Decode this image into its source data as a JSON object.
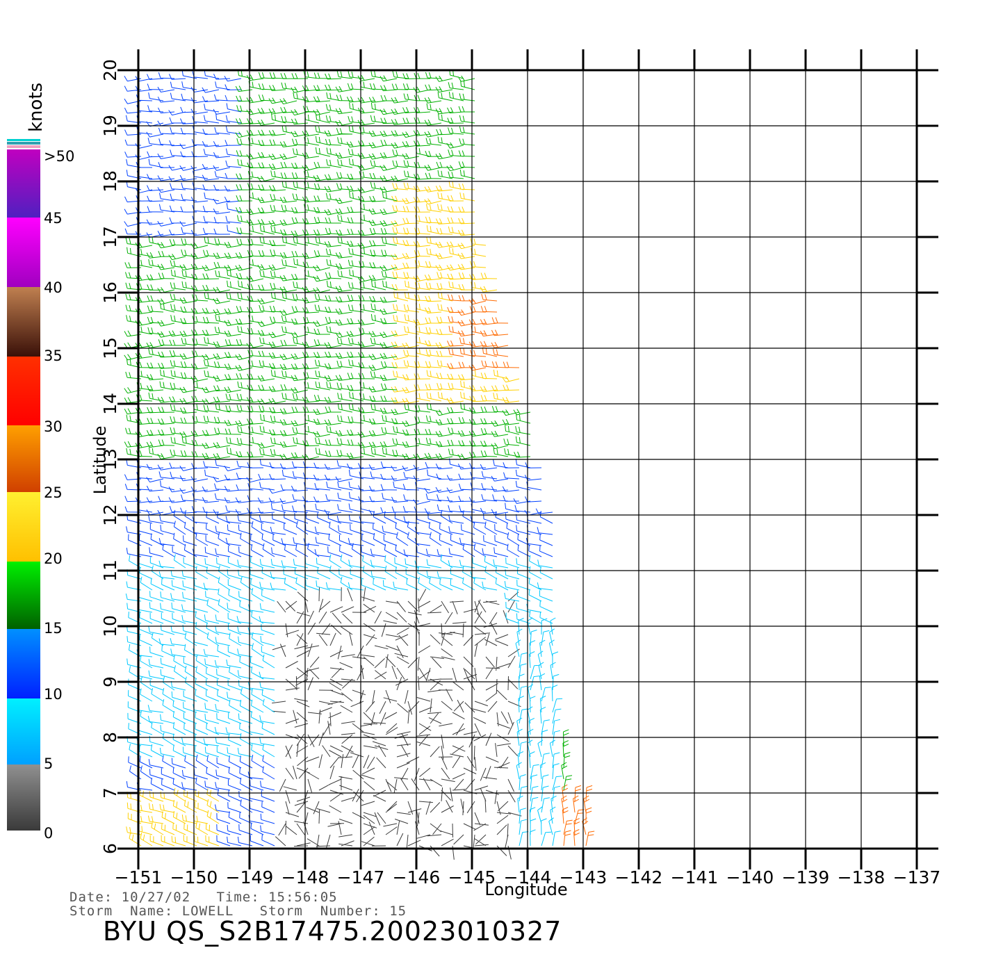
{
  "chart_data": {
    "type": "scatter",
    "xlabel": "Longitude",
    "ylabel": "Latitude",
    "xlim": [
      -151,
      -137
    ],
    "ylim": [
      6,
      20
    ],
    "xticks": [
      "-151",
      "-150",
      "-149",
      "-148",
      "-147",
      "-146",
      "-145",
      "-144",
      "-143",
      "-142",
      "-141",
      "-140",
      "-139",
      "-138",
      "-137"
    ],
    "yticks": [
      "6",
      "7",
      "8",
      "9",
      "10",
      "11",
      "12",
      "13",
      "14",
      "15",
      "16",
      "17",
      "18",
      "19",
      "20"
    ],
    "grid": true,
    "colorbar": {
      "title": "knots",
      "labels": [
        "0",
        "5",
        "10",
        "15",
        "20",
        "25",
        "30",
        "35",
        "40",
        "45",
        ">50"
      ],
      "colors": {
        "0-5": "#3a3a3a",
        "5-10": "#00c8ff",
        "10-15": "#0040ff",
        "15-20": "#00b000",
        "20-25": "#ffd000",
        "25-30": "#ff6a00",
        "30-35": "#ff1a00",
        "35-40": "#8a4a30",
        "40-45": "#ff00ff",
        "45-50": "#8000c0"
      }
    },
    "wind_field_regions": [
      {
        "lat_range": [
          17,
          20
        ],
        "lon_range": [
          -151,
          -149
        ],
        "speed_knots": "10-15",
        "direction": "easterly"
      },
      {
        "lat_range": [
          13,
          20
        ],
        "lon_range": [
          -149,
          -144
        ],
        "speed_knots": "15-20",
        "direction": "easterly"
      },
      {
        "lat_range": [
          14,
          18
        ],
        "lon_range": [
          -146,
          -143.5
        ],
        "speed_knots": "20-27",
        "direction": "easterly"
      },
      {
        "lat_range": [
          11,
          13
        ],
        "lon_range": [
          -151,
          -143
        ],
        "speed_knots": "10-15",
        "direction": "easterly"
      },
      {
        "lat_range": [
          8,
          11
        ],
        "lon_range": [
          -148,
          -144
        ],
        "speed_knots": "0-5",
        "direction": "variable"
      },
      {
        "lat_range": [
          6,
          10
        ],
        "lon_range": [
          -144,
          -143
        ],
        "speed_knots": "5-10",
        "direction": "southerly"
      },
      {
        "lat_range": [
          6,
          8
        ],
        "lon_range": [
          -143.5,
          -142.9
        ],
        "speed_knots": "20-30",
        "direction": "southerly"
      }
    ]
  },
  "info": {
    "line1": "Date: 10/27/02   Time: 15:56:05",
    "line2": "Storm  Name: LOWELL   Storm  Number: 15",
    "product": "BYU  QS_S2B17475.20023010327"
  }
}
